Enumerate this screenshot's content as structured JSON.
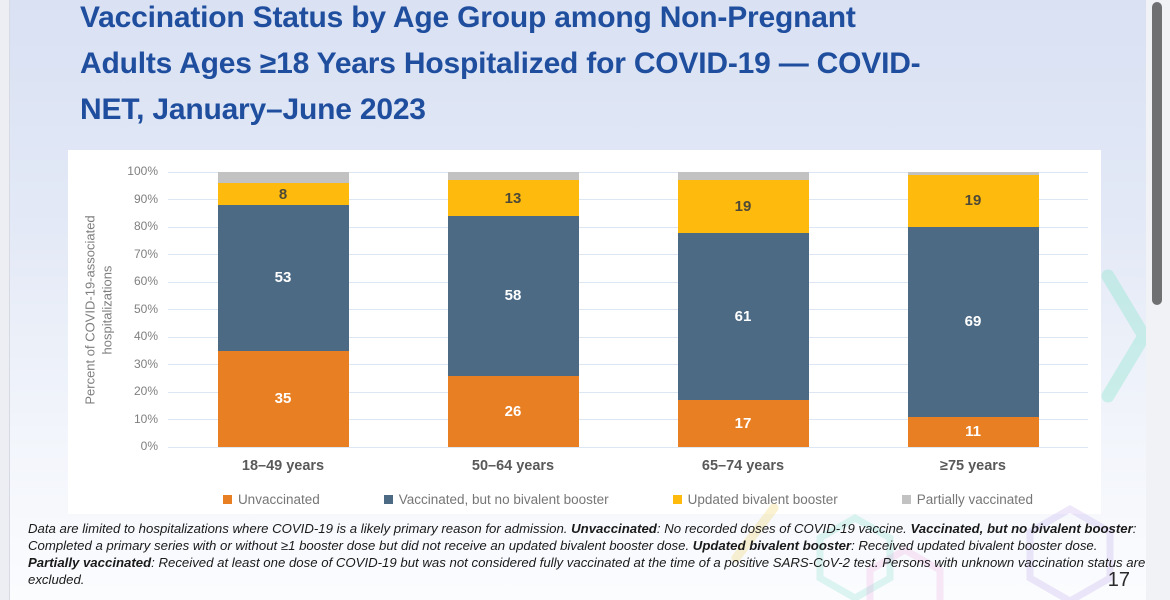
{
  "page": {
    "title_lines": [
      "Vaccination Status by Age Group among Non-Pregnant",
      "Adults Ages ≥18 Years Hospitalized for COVID-19 — COVID-",
      "NET, January–June 2023"
    ],
    "page_number": "17",
    "footnote_segments": [
      {
        "text": "Data are limited to hospitalizations where COVID-19 is a likely primary reason for admission. ",
        "bold": false
      },
      {
        "text": "Unvaccinated",
        "bold": true
      },
      {
        "text": ": No recorded doses of COVID-19 vaccine. ",
        "bold": false
      },
      {
        "text": "Vaccinated, but no bivalent booster",
        "bold": true
      },
      {
        "text": ": Completed a primary series with or without ≥1 booster dose but did not receive an updated bivalent booster dose. ",
        "bold": false
      },
      {
        "text": "Updated bivalent booster",
        "bold": true
      },
      {
        "text": ": Received updated bivalent booster dose. ",
        "bold": false
      },
      {
        "text": "Partially vaccinated",
        "bold": true
      },
      {
        "text": ": Received at least one dose of COVID-19 but was not considered fully vaccinated at the time of a positive SARS-CoV-2 test. Persons with unknown vaccination status are excluded.",
        "bold": false
      }
    ],
    "colors": {
      "title_blue": "#1F4E9E",
      "slide_bg_top": "#D9E1F3",
      "slide_bg_bottom": "#FBFCFE"
    }
  },
  "chart_data": {
    "type": "bar",
    "stacked": true,
    "categories": [
      "18–49 years",
      "50–64 years",
      "65–74 years",
      "≥75 years"
    ],
    "series": [
      {
        "name": "Unvaccinated",
        "color": "#E87F22",
        "label_color": "#FFFFFF",
        "labels_visible": true,
        "values": [
          35,
          26,
          17,
          11
        ]
      },
      {
        "name": "Vaccinated, but no bivalent booster",
        "color": "#4D6A85",
        "label_color": "#FFFFFF",
        "labels_visible": true,
        "values": [
          53,
          58,
          61,
          69
        ]
      },
      {
        "name": "Updated bivalent booster",
        "color": "#FFBB0D",
        "label_color": "#4F4A37",
        "labels_visible": true,
        "values": [
          8,
          13,
          19,
          19
        ]
      },
      {
        "name": "Partially vaccinated",
        "color": "#C2C2C2",
        "labels_visible": false,
        "values": [
          4,
          3,
          3,
          1
        ]
      }
    ],
    "ylabel": "Percent of COVID-19-associated hospitalizations",
    "ylabel_lines": [
      "Percent of COVID-19-associated",
      "hospitalizations"
    ],
    "ylim": [
      0,
      100
    ],
    "ytick_step": 10,
    "ytick_suffix": "%",
    "grid": true,
    "legend_position": "bottom",
    "gridline_color": "#DDE7F3"
  }
}
